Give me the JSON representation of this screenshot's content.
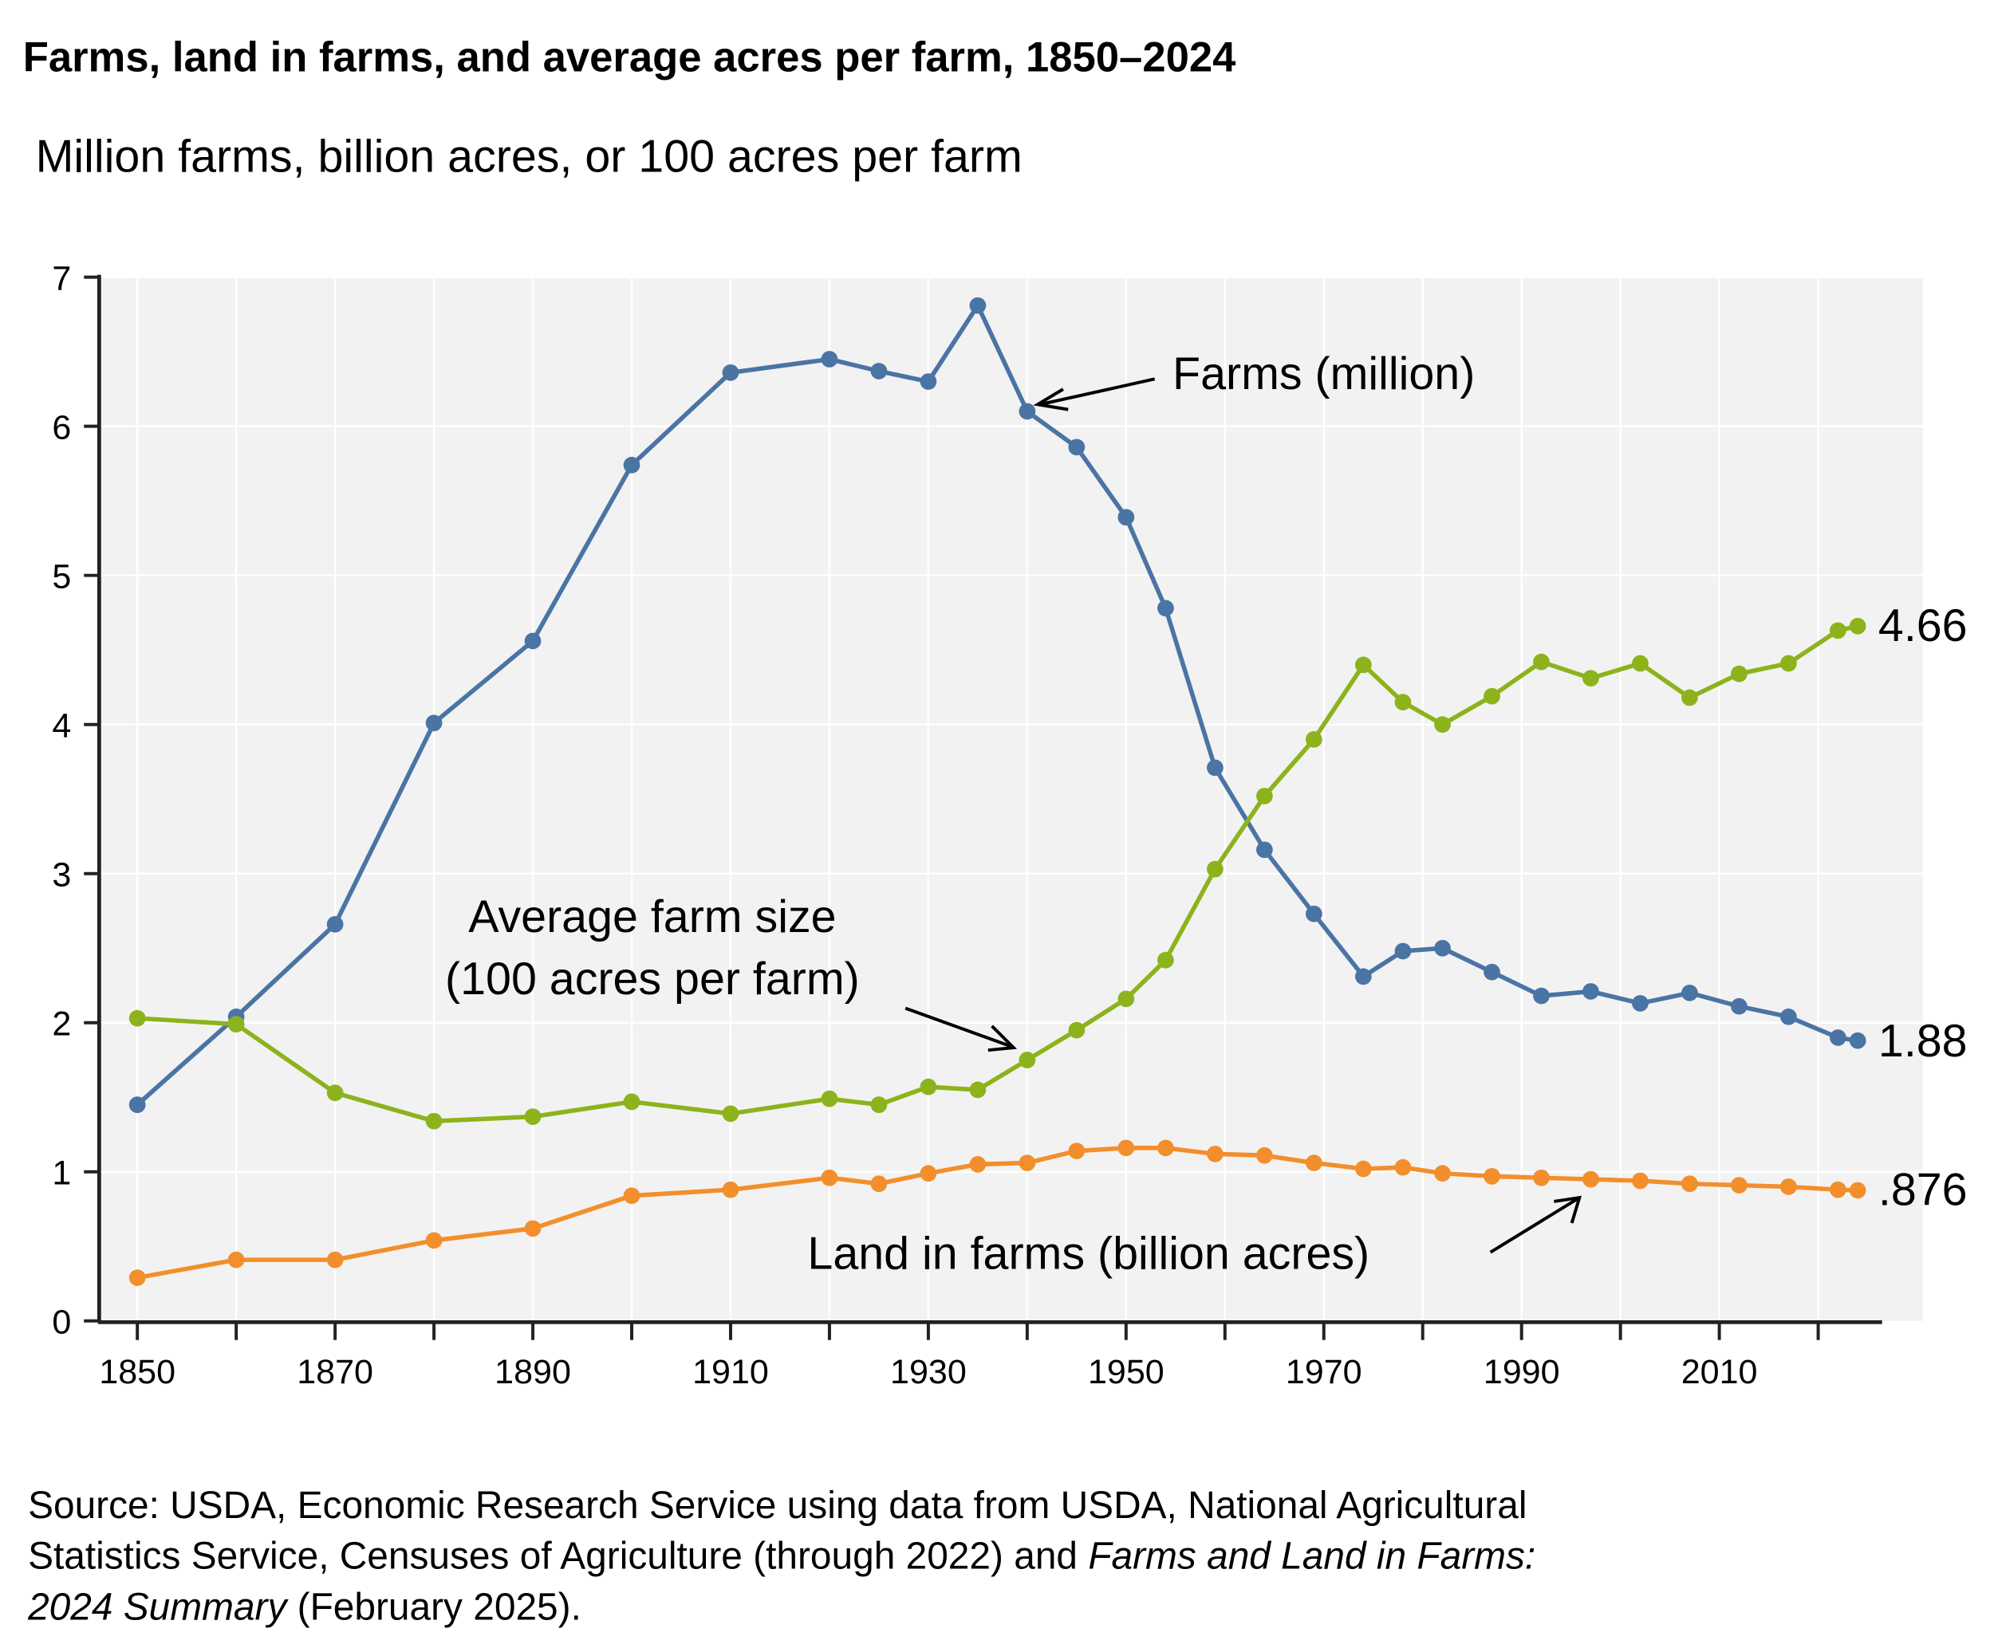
{
  "chart_data": {
    "type": "line",
    "title": "Farms, land in farms, and average acres per farm, 1850–2024",
    "subtitle": "Million farms, billion acres, or 100 acres per farm",
    "xlabel": "",
    "ylabel": "",
    "xlim": [
      1846,
      2030
    ],
    "ylim": [
      0,
      7
    ],
    "grid": true,
    "legend": "none (direct labels)",
    "x_ticks": [
      "1850",
      "1870",
      "1890",
      "1910",
      "1930",
      "1950",
      "1970",
      "1990",
      "2010"
    ],
    "y_ticks": [
      "0",
      "1",
      "2",
      "3",
      "4",
      "5",
      "6",
      "7"
    ],
    "x": [
      1850,
      1860,
      1870,
      1880,
      1890,
      1900,
      1910,
      1920,
      1925,
      1930,
      1935,
      1940,
      1945,
      1950,
      1954,
      1959,
      1964,
      1969,
      1974,
      1978,
      1982,
      1987,
      1992,
      1997,
      2002,
      2007,
      2012,
      2017,
      2022,
      2024
    ],
    "series": [
      {
        "name": "Farms (million)",
        "color": "#4a74a4",
        "values": [
          1.45,
          2.04,
          2.66,
          4.01,
          4.56,
          5.74,
          6.36,
          6.45,
          6.37,
          6.3,
          6.81,
          6.1,
          5.86,
          5.39,
          4.78,
          3.71,
          3.16,
          2.73,
          2.31,
          2.48,
          2.5,
          2.34,
          2.18,
          2.21,
          2.13,
          2.2,
          2.11,
          2.04,
          1.9,
          1.88
        ]
      },
      {
        "name": "Average farm size (100 acres per farm)",
        "color": "#8db31c",
        "values": [
          2.03,
          1.99,
          1.53,
          1.34,
          1.37,
          1.47,
          1.39,
          1.49,
          1.45,
          1.57,
          1.55,
          1.75,
          1.95,
          2.16,
          2.42,
          3.03,
          3.52,
          3.9,
          4.4,
          4.15,
          4.0,
          4.19,
          4.42,
          4.31,
          4.41,
          4.18,
          4.34,
          4.41,
          4.63,
          4.66
        ]
      },
      {
        "name": "Land in farms (billion acres)",
        "color": "#f28f2c",
        "values": [
          0.29,
          0.41,
          0.41,
          0.54,
          0.62,
          0.84,
          0.88,
          0.96,
          0.92,
          0.99,
          1.05,
          1.06,
          1.14,
          1.16,
          1.16,
          1.12,
          1.11,
          1.06,
          1.02,
          1.03,
          0.99,
          0.97,
          0.96,
          0.95,
          0.94,
          0.92,
          0.91,
          0.9,
          0.88,
          0.876
        ]
      }
    ],
    "annotations": {
      "farms": "Farms (million)",
      "size_line1": "Average farm size",
      "size_line2": "(100 acres per farm)",
      "land": "Land in farms (billion acres)",
      "end_size": "4.66",
      "end_farms": "1.88",
      "end_land": ".876"
    },
    "source": {
      "line1": "Source: USDA, Economic Research Service using data from USDA, National Agricultural",
      "line2a": "Statistics Service, Censuses of Agriculture (through 2022) and ",
      "line2b": "Farms and Land in Farms:",
      "line3a": "2024 Summary",
      "line3b": " (February 2025)."
    },
    "colors": {
      "plot_background": "#f2f2f2",
      "grid": "#ffffff"
    }
  }
}
